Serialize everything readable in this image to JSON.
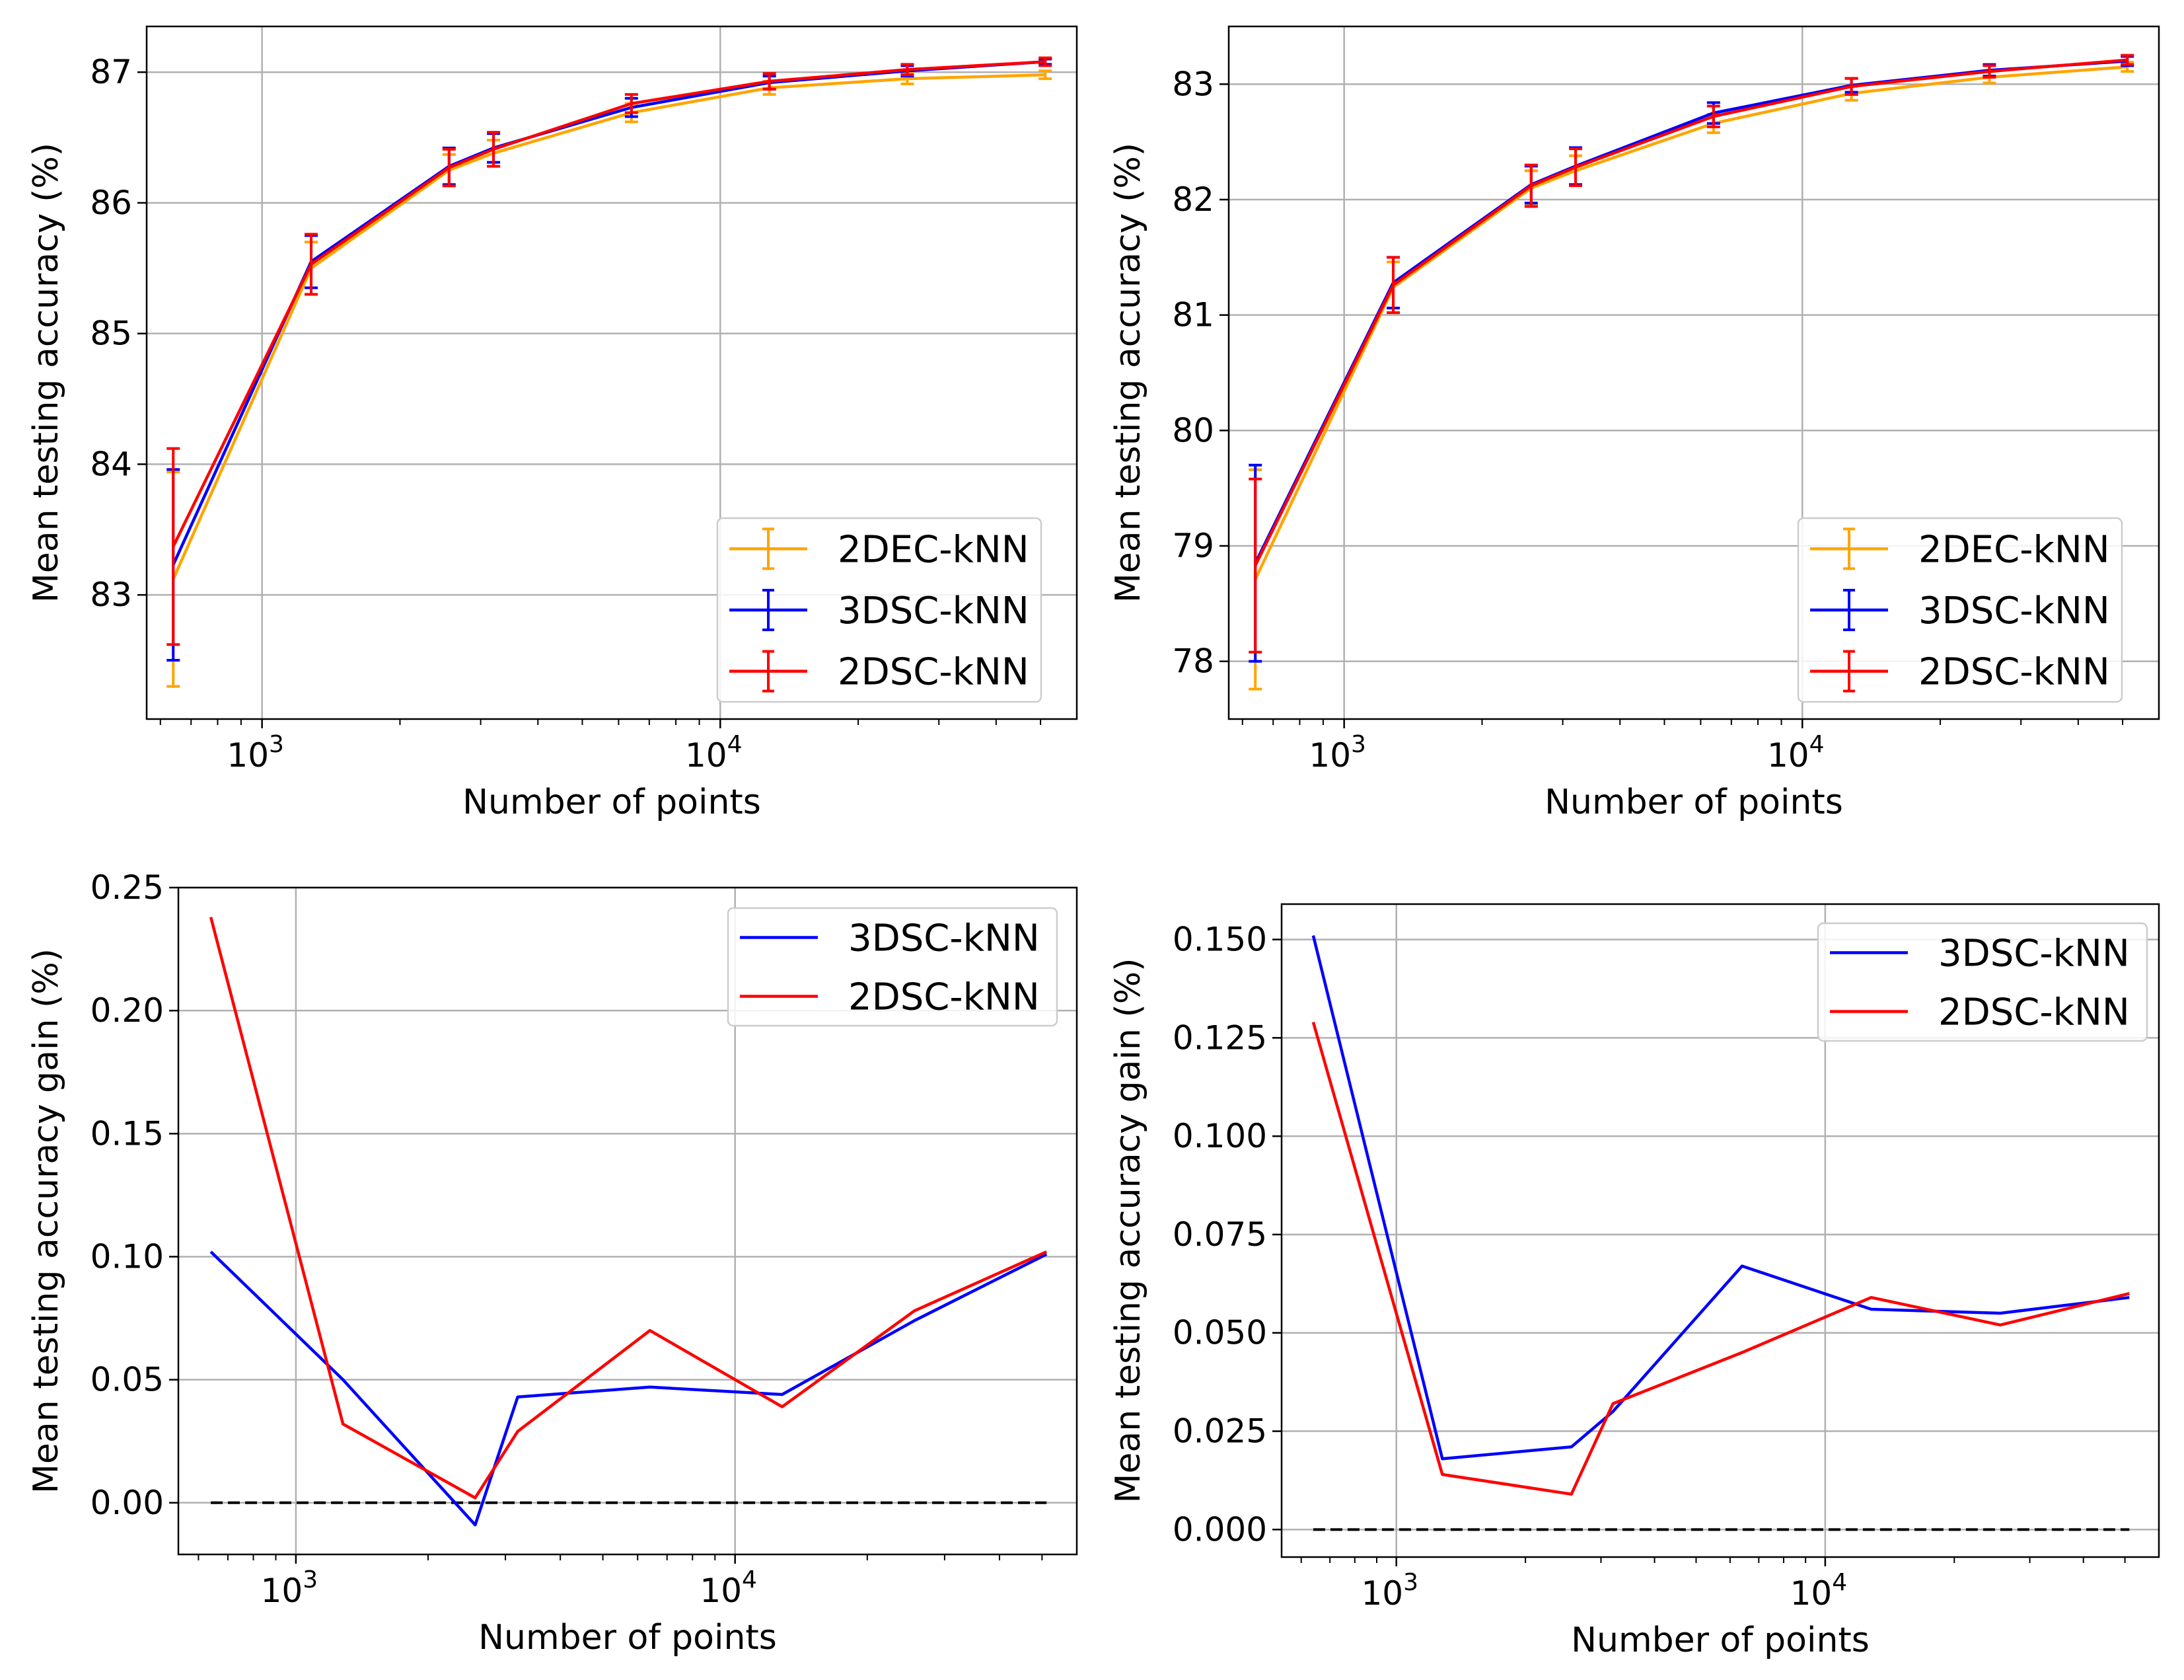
{
  "chart_data": [
    {
      "type": "line",
      "panel": "top-left",
      "title": "",
      "xlabel": "Number of points",
      "ylabel": "Mean testing accuracy (%)",
      "xscale": "log",
      "xlim": [
        560,
        60000
      ],
      "ylim": [
        82.05,
        87.35
      ],
      "yticks": [
        {
          "value": 83,
          "label": "83"
        },
        {
          "value": 84,
          "label": "84"
        },
        {
          "value": 85,
          "label": "85"
        },
        {
          "value": 86,
          "label": "86"
        },
        {
          "value": 87,
          "label": "87"
        }
      ],
      "xticks": [
        {
          "value": 1000,
          "base": "10",
          "exp": "3"
        },
        {
          "value": 10000,
          "base": "10",
          "exp": "4"
        }
      ],
      "grid": true,
      "legend_position": "lower-right",
      "x": [
        640,
        1280,
        2560,
        3200,
        6400,
        12800,
        25600,
        51200
      ],
      "series": [
        {
          "name": "2DEC-kNN",
          "color": "#ffa500",
          "values": [
            83.12,
            85.5,
            86.25,
            86.38,
            86.69,
            86.88,
            86.95,
            86.98
          ],
          "errors": [
            0.82,
            0.2,
            0.12,
            0.1,
            0.07,
            0.05,
            0.04,
            0.03
          ]
        },
        {
          "name": "3DSC-kNN",
          "color": "#0000ff",
          "values": [
            83.23,
            85.55,
            86.28,
            86.42,
            86.73,
            86.92,
            87.01,
            87.08
          ],
          "errors": [
            0.73,
            0.2,
            0.14,
            0.11,
            0.07,
            0.05,
            0.04,
            0.02
          ]
        },
        {
          "name": "2DSC-kNN",
          "color": "#ff0000",
          "values": [
            83.37,
            85.53,
            86.27,
            86.41,
            86.76,
            86.93,
            87.02,
            87.08
          ],
          "errors": [
            0.75,
            0.23,
            0.14,
            0.13,
            0.07,
            0.06,
            0.04,
            0.03
          ]
        }
      ]
    },
    {
      "type": "line",
      "panel": "top-right",
      "title": "",
      "xlabel": "Number of points",
      "ylabel": "Mean testing accuracy (%)",
      "xscale": "log",
      "xlim": [
        560,
        60000
      ],
      "ylim": [
        77.5,
        83.5
      ],
      "yticks": [
        {
          "value": 78,
          "label": "78"
        },
        {
          "value": 79,
          "label": "79"
        },
        {
          "value": 80,
          "label": "80"
        },
        {
          "value": 81,
          "label": "81"
        },
        {
          "value": 82,
          "label": "82"
        },
        {
          "value": 83,
          "label": "83"
        }
      ],
      "xticks": [
        {
          "value": 1000,
          "base": "10",
          "exp": "3"
        },
        {
          "value": 10000,
          "base": "10",
          "exp": "4"
        }
      ],
      "grid": true,
      "legend_position": "lower-right",
      "x": [
        640,
        1280,
        2560,
        3200,
        6400,
        12800,
        25600,
        51200
      ],
      "series": [
        {
          "name": "2DEC-kNN",
          "color": "#ffa500",
          "values": [
            78.71,
            81.24,
            82.1,
            82.25,
            82.66,
            82.92,
            83.06,
            83.15
          ],
          "errors": [
            0.95,
            0.22,
            0.15,
            0.13,
            0.08,
            0.06,
            0.05,
            0.04
          ]
        },
        {
          "name": "3DSC-kNN",
          "color": "#0000ff",
          "values": [
            78.85,
            81.28,
            82.13,
            82.29,
            82.75,
            82.99,
            83.12,
            83.2
          ],
          "errors": [
            0.85,
            0.22,
            0.16,
            0.16,
            0.09,
            0.06,
            0.05,
            0.04
          ]
        },
        {
          "name": "2DSC-kNN",
          "color": "#ff0000",
          "values": [
            78.83,
            81.26,
            82.12,
            82.28,
            82.72,
            82.98,
            83.11,
            83.21
          ],
          "errors": [
            0.75,
            0.24,
            0.18,
            0.16,
            0.09,
            0.07,
            0.05,
            0.04
          ]
        }
      ]
    },
    {
      "type": "line",
      "panel": "bottom-left",
      "title": "",
      "xlabel": "Number of points",
      "ylabel": "Mean testing accuracy gain (%)",
      "xscale": "log",
      "xlim": [
        540,
        60000
      ],
      "ylim": [
        -0.021,
        0.25
      ],
      "yticks": [
        {
          "value": 0.0,
          "label": "0.00"
        },
        {
          "value": 0.05,
          "label": "0.05"
        },
        {
          "value": 0.1,
          "label": "0.10"
        },
        {
          "value": 0.15,
          "label": "0.15"
        },
        {
          "value": 0.2,
          "label": "0.20"
        },
        {
          "value": 0.25,
          "label": "0.25"
        }
      ],
      "xticks": [
        {
          "value": 1000,
          "base": "10",
          "exp": "3"
        },
        {
          "value": 10000,
          "base": "10",
          "exp": "4"
        }
      ],
      "grid": true,
      "legend_position": "top-right",
      "baseline": 0,
      "x": [
        640,
        1280,
        2560,
        3200,
        6400,
        12800,
        25600,
        51200
      ],
      "series": [
        {
          "name": "3DSC-kNN",
          "color": "#0000ff",
          "values": [
            0.102,
            0.05,
            -0.009,
            0.043,
            0.047,
            0.044,
            0.074,
            0.101
          ]
        },
        {
          "name": "2DSC-kNN",
          "color": "#ff0000",
          "values": [
            0.238,
            0.032,
            0.002,
            0.029,
            0.07,
            0.039,
            0.078,
            0.102
          ]
        }
      ]
    },
    {
      "type": "line",
      "panel": "bottom-right",
      "title": "",
      "xlabel": "Number of points",
      "ylabel": "Mean testing accuracy gain (%)",
      "xscale": "log",
      "xlim": [
        540,
        60000
      ],
      "ylim": [
        -0.007,
        0.159
      ],
      "yticks": [
        {
          "value": 0.0,
          "label": "0.000"
        },
        {
          "value": 0.025,
          "label": "0.025"
        },
        {
          "value": 0.05,
          "label": "0.050"
        },
        {
          "value": 0.075,
          "label": "0.075"
        },
        {
          "value": 0.1,
          "label": "0.100"
        },
        {
          "value": 0.125,
          "label": "0.125"
        },
        {
          "value": 0.15,
          "label": "0.150"
        }
      ],
      "xticks": [
        {
          "value": 1000,
          "base": "10",
          "exp": "3"
        },
        {
          "value": 10000,
          "base": "10",
          "exp": "4"
        }
      ],
      "grid": true,
      "legend_position": "top-right",
      "baseline": 0,
      "x": [
        640,
        1280,
        2560,
        3200,
        6400,
        12800,
        25600,
        51200
      ],
      "series": [
        {
          "name": "3DSC-kNN",
          "color": "#0000ff",
          "values": [
            0.151,
            0.018,
            0.021,
            0.03,
            0.067,
            0.056,
            0.055,
            0.059
          ]
        },
        {
          "name": "2DSC-kNN",
          "color": "#ff0000",
          "values": [
            0.129,
            0.014,
            0.009,
            0.032,
            0.045,
            0.059,
            0.052,
            0.06
          ]
        }
      ]
    }
  ]
}
